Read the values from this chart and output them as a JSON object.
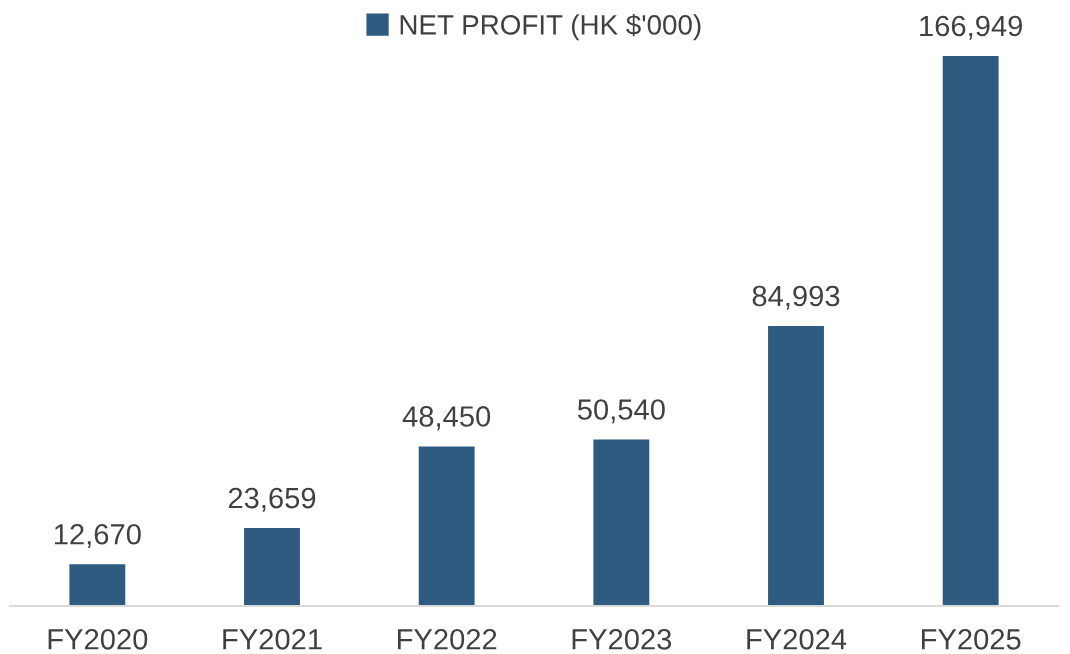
{
  "chart_data": {
    "type": "bar",
    "categories": [
      "FY2020",
      "FY2021",
      "FY2022",
      "FY2023",
      "FY2024",
      "FY2025"
    ],
    "series": [
      {
        "name": "NET PROFIT (HK $'000)",
        "color": "#2e5b7f",
        "values": [
          12670,
          23659,
          48450,
          50540,
          84993,
          166949
        ],
        "value_labels": [
          "12,670",
          "23,659",
          "48,450",
          "50,540",
          "84,993",
          "166,949"
        ]
      }
    ],
    "legend": "top",
    "grid": false
  }
}
